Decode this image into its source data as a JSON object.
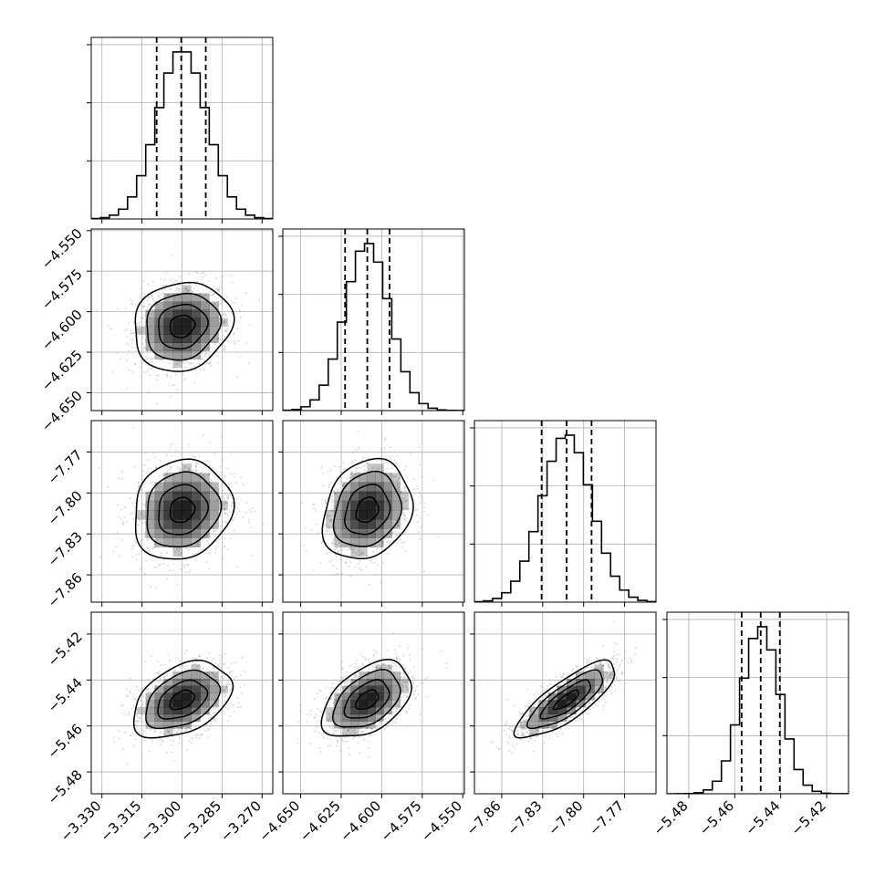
{
  "chart_data": {
    "type": "corner",
    "title": "",
    "dimensions": [
      {
        "key": "p1",
        "label": "",
        "range": [
          -3.334,
          -3.266
        ],
        "ticks": [
          -3.33,
          -3.315,
          -3.3,
          -3.285,
          -3.27
        ],
        "tick_labels": [
          "−3.330",
          "−3.315",
          "−3.300",
          "−3.285",
          "−3.270"
        ],
        "quantiles": [
          -3.3095,
          -3.3003,
          -3.2911
        ],
        "mean": -3.3,
        "sigma": 0.0092
      },
      {
        "key": "p2",
        "label": "",
        "range": [
          -4.661,
          -4.549
        ],
        "ticks": [
          -4.65,
          -4.625,
          -4.6,
          -4.575,
          -4.55
        ],
        "tick_labels": [
          "−4.650",
          "−4.625",
          "−4.600",
          "−4.575",
          "−4.550"
        ],
        "quantiles": [
          -4.6226,
          -4.6089,
          -4.5952
        ],
        "mean": -4.609,
        "sigma": 0.0137
      },
      {
        "key": "p3",
        "label": "",
        "range": [
          -7.88,
          -7.747
        ],
        "ticks": [
          -7.86,
          -7.83,
          -7.8,
          -7.77
        ],
        "tick_labels": [
          "−7.86",
          "−7.83",
          "−7.80",
          "−7.77"
        ],
        "quantiles": [
          -7.8308,
          -7.8125,
          -7.7942
        ],
        "mean": -7.8125,
        "sigma": 0.0183
      },
      {
        "key": "p4",
        "label": "",
        "range": [
          -5.4895,
          -5.4105
        ],
        "ticks": [
          -5.48,
          -5.46,
          -5.44,
          -5.42
        ],
        "tick_labels": [
          "−5.48",
          "−5.46",
          "−5.44",
          "−5.42"
        ],
        "quantiles": [
          -5.457,
          -5.4487,
          -5.4404
        ],
        "mean": -5.4487,
        "sigma": 0.0083
      }
    ],
    "correlations": [
      {
        "i": 1,
        "j": 0,
        "rho": 0.12
      },
      {
        "i": 2,
        "j": 0,
        "rho": 0.12
      },
      {
        "i": 2,
        "j": 1,
        "rho": 0.2
      },
      {
        "i": 3,
        "j": 0,
        "rho": 0.4
      },
      {
        "i": 3,
        "j": 1,
        "rho": 0.45
      },
      {
        "i": 3,
        "j": 2,
        "rho": 0.8
      }
    ],
    "histogram_bins": 20,
    "contour_levels": [
      0.5,
      1.0,
      1.5,
      2.0
    ],
    "grid": true,
    "legend": "none",
    "colors": {
      "hist": "#000000",
      "points": "#9e9e9e",
      "density": "#000000",
      "grid": "#b0b0b0"
    }
  }
}
